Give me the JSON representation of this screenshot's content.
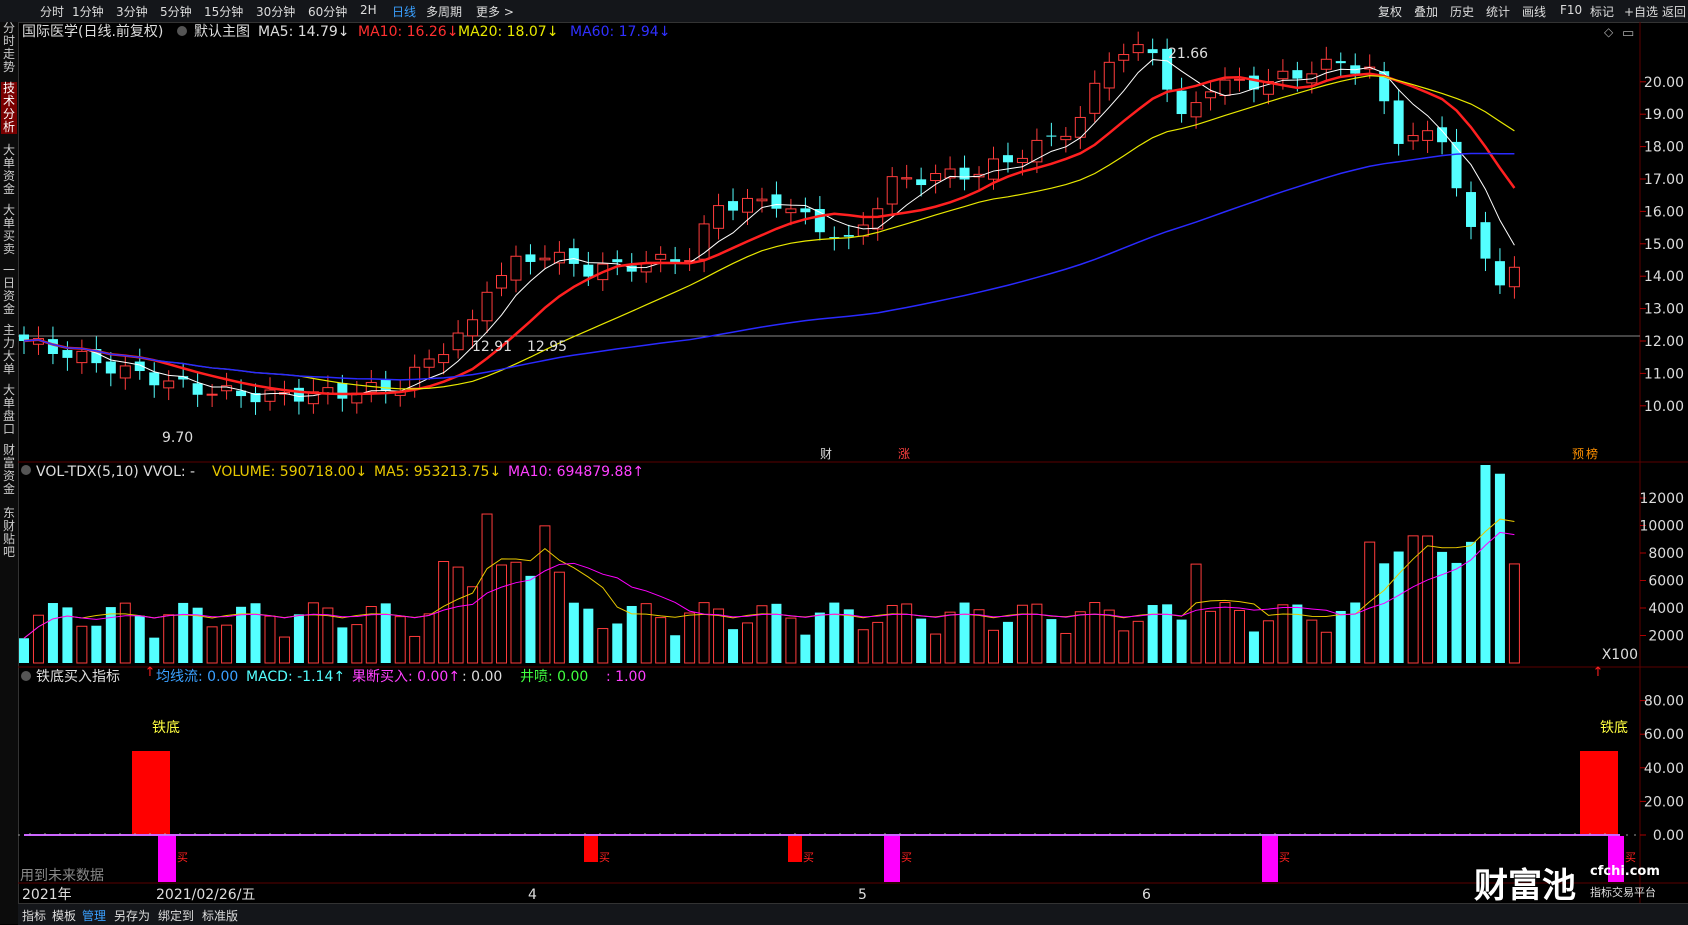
{
  "toolbar": {
    "timeframes": [
      "分时",
      "1分钟",
      "3分钟",
      "5分钟",
      "15分钟",
      "30分钟",
      "60分钟",
      "2H",
      "日线",
      "多周期",
      "更多 >"
    ],
    "active_timeframe": "日线",
    "right_buttons": [
      "复权",
      "叠加",
      "历史",
      "统计",
      "画线",
      "F10",
      "标记",
      "+自选",
      "返回"
    ]
  },
  "sidebar": {
    "tabs": [
      "分时走势",
      "技术分析",
      "大单资金",
      "大单买卖",
      "一日资金",
      "主力大单",
      "大单盘口",
      "财富资金",
      "东财贴吧"
    ],
    "active_tab": "技术分析"
  },
  "main_chart": {
    "header": {
      "stock": "国际医学(日线.前复权)",
      "template": "默认主图",
      "ma5": "MA5: 14.79↓",
      "ma10": "MA10: 16.26↓",
      "ma20": "MA20: 18.07↓",
      "ma60": "MA60: 17.94↓"
    },
    "annotations": {
      "high": "21.66",
      "low": "9.70",
      "level_a": "12.91",
      "level_b": "12.95"
    },
    "event_tags": [
      "财",
      "涨",
      "预",
      "榜"
    ],
    "y_ticks": [
      "20.00",
      "19.00",
      "18.00",
      "17.00",
      "16.00",
      "15.00",
      "14.00",
      "13.00",
      "12.00",
      "11.00",
      "10.00"
    ]
  },
  "volume_panel": {
    "header": {
      "name": "VOL-TDX(5,10) VVOL: -",
      "volume": "VOLUME: 590718.00↓",
      "ma5": "MA5: 953213.75↓",
      "ma10": "MA10: 694879.88↑"
    },
    "y_ticks": [
      "12000",
      "10000",
      "8000",
      "6000",
      "4000",
      "2000"
    ],
    "unit": "X100"
  },
  "indicator_panel": {
    "header": {
      "name": "铁底买入指标",
      "f1": "均线流: 0.00",
      "f2": "MACD: -1.14↑",
      "f3": "果断买入: 0.00↑",
      "f4": ": 0.00",
      "f5": "井喷: 0.00",
      "f6": ": 1.00"
    },
    "signal_label": "铁底",
    "buy_mark": "买",
    "y_ticks": [
      "80.00",
      "60.00",
      "40.00",
      "20.00",
      "0.00"
    ],
    "footer_note": "用到未来数据"
  },
  "x_axis": {
    "labels": [
      "2021年",
      "2021/02/26/五",
      "4",
      "5",
      "6"
    ]
  },
  "bottom_bar": {
    "items": [
      "指标",
      "模板",
      "管理",
      "另存为",
      "绑定到",
      "标准版"
    ],
    "active": "管理"
  },
  "watermark": {
    "logo_text": "财富池",
    "domain": "cfchi.com",
    "slogan": "指标交易平台"
  },
  "colors": {
    "up": "#ff3c3c",
    "down": "#54ffff",
    "ma5": "#ffffff",
    "ma10": "#ff2020",
    "ma20": "#e8e800",
    "ma60": "#2a2aff",
    "accent": "#3aa0ff",
    "magenta": "#ff00ff"
  }
}
